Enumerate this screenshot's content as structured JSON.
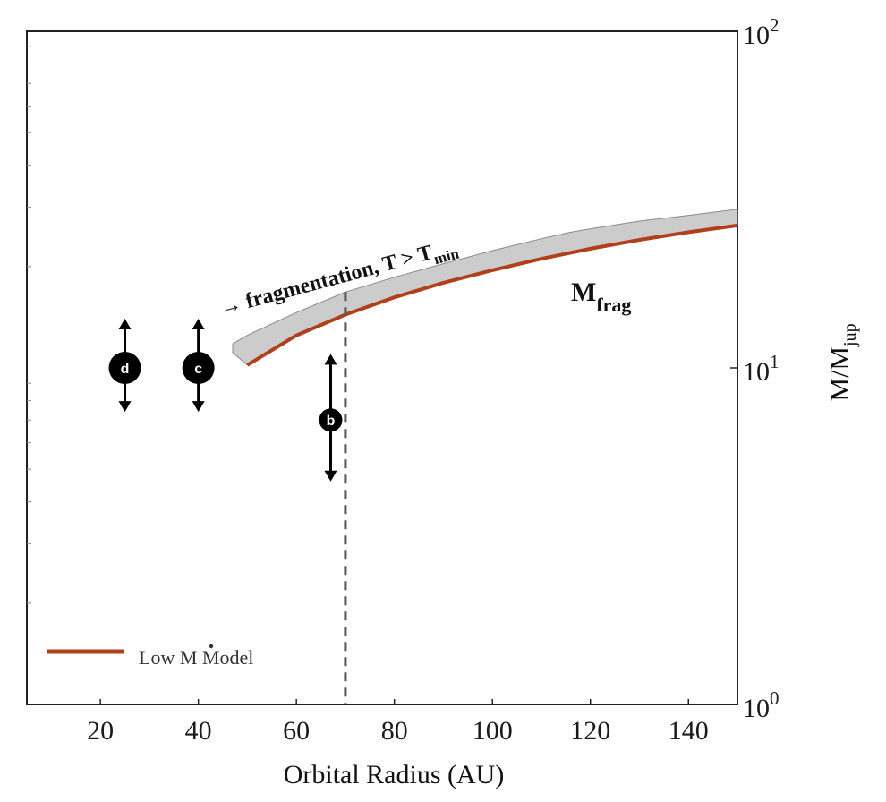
{
  "chart_data": {
    "type": "line",
    "xlabel": "Orbital Radius (AU)",
    "ylabel": {
      "main": "M/M",
      "sub": "jup"
    },
    "xlim": [
      5,
      150
    ],
    "ylim": [
      1,
      100
    ],
    "yscale": "log",
    "x_ticks": [
      20,
      40,
      60,
      80,
      100,
      120,
      140
    ],
    "y_ticks": [
      {
        "value": 1,
        "base": "10",
        "exp": "0"
      },
      {
        "value": 10,
        "base": "10",
        "exp": "1"
      },
      {
        "value": 100,
        "base": "10",
        "exp": "2"
      }
    ],
    "grid": false,
    "legend_position": "bottom-left",
    "legend": {
      "prefix": "Low ",
      "mark": "M",
      "suffix": " Model"
    },
    "series": [
      {
        "name": "Low Ṁ Model",
        "color": "#b0401c",
        "x": [
          50,
          60,
          70,
          80,
          90,
          100,
          110,
          120,
          130,
          140,
          150
        ],
        "y": [
          10.2,
          12.5,
          14.4,
          16.2,
          17.9,
          19.5,
          21.1,
          22.6,
          24.0,
          25.3,
          26.5
        ]
      }
    ],
    "band": {
      "color": "#cccccc",
      "x": [
        47,
        50,
        60,
        70,
        80,
        90,
        100,
        110,
        116,
        120,
        130,
        140,
        150
      ],
      "lower": [
        11.1,
        10.2,
        12.5,
        14.4,
        16.2,
        17.9,
        19.5,
        21.1,
        22.0,
        22.6,
        24.0,
        25.3,
        26.5
      ],
      "upper": [
        11.8,
        12.5,
        14.6,
        16.8,
        18.6,
        20.4,
        22.3,
        24.2,
        25.3,
        25.9,
        27.3,
        28.4,
        29.6
      ]
    },
    "vline": {
      "x": 70,
      "style": "dashed"
    },
    "planets": [
      {
        "label": "d",
        "x": 25,
        "y": 10,
        "arrow_up": 14.0,
        "arrow_down": 7.4
      },
      {
        "label": "c",
        "x": 40,
        "y": 10,
        "arrow_up": 14.0,
        "arrow_down": 7.4
      },
      {
        "label": "b",
        "x": 67,
        "y": 7.0,
        "arrow_up": 11.0,
        "arrow_down": 4.6
      }
    ],
    "annotations": [
      {
        "text_arrow": "→ ",
        "text_main": "fragmentation, T > T",
        "text_sub": "min"
      },
      {
        "text_main": "M",
        "text_sub": "frag"
      }
    ]
  }
}
